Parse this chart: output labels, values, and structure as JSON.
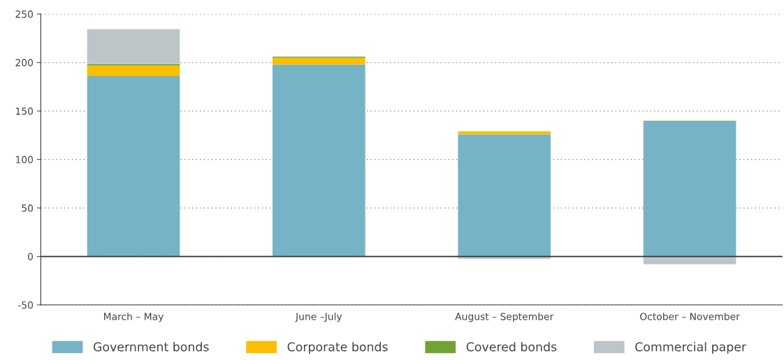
{
  "chart_data": {
    "type": "bar",
    "stacked": true,
    "categories": [
      "March – May",
      "June –July",
      "August – September",
      "October – November"
    ],
    "series": [
      {
        "name": "Government bonds",
        "color": "#76b3c7",
        "values": [
          186,
          198,
          126,
          139.5
        ]
      },
      {
        "name": "Corporate bonds",
        "color": "#fbbf00",
        "values": [
          11,
          7,
          3,
          0
        ]
      },
      {
        "name": "Covered bonds",
        "color": "#72a236",
        "values": [
          1.5,
          1,
          0,
          0.5
        ]
      },
      {
        "name": "Commercial paper",
        "color": "#bec5c8",
        "values": [
          36,
          0,
          -2.5,
          -8
        ]
      }
    ],
    "ylim": [
      -50,
      250
    ],
    "yticks": [
      -50,
      0,
      50,
      100,
      150,
      200,
      250
    ],
    "grid": "y",
    "legend": "bottom"
  }
}
